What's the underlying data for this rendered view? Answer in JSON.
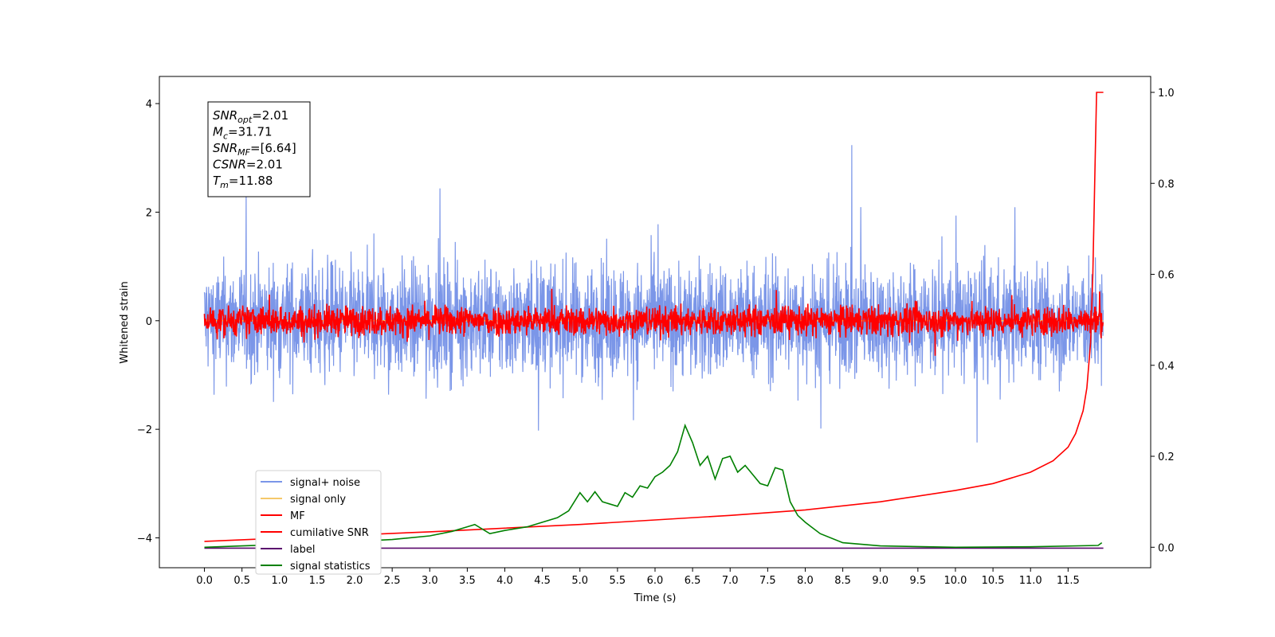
{
  "chart_data": {
    "type": "line",
    "xlabel": "Time (s)",
    "ylabel": "Whitened strain",
    "xlim": [
      -0.6,
      12.6
    ],
    "ylim": [
      -4.55,
      4.5
    ],
    "y2lim": [
      -0.045,
      1.035
    ],
    "x_ticks": [
      "0.0",
      "0.5",
      "1.0",
      "1.5",
      "2.0",
      "2.5",
      "3.0",
      "3.5",
      "4.0",
      "4.5",
      "5.0",
      "5.5",
      "6.0",
      "6.5",
      "7.0",
      "7.5",
      "8.0",
      "8.5",
      "9.0",
      "9.5",
      "10.0",
      "10.5",
      "11.0",
      "11.5"
    ],
    "y_ticks": [
      "4",
      "2",
      "0",
      "−2",
      "−4"
    ],
    "y2_ticks": [
      "1.0",
      "0.8",
      "0.6",
      "0.4",
      "0.2",
      "0.0"
    ],
    "grid": false,
    "legend_position": "lower-left",
    "colors": {
      "signal_noise": "#7b96e8",
      "signal_only": "#f5c86a",
      "mf": "#ff0000",
      "cumulative_snr": "#ff0000",
      "label": "#5a0a6e",
      "signal_statistics": "#008000"
    },
    "series": [
      {
        "name": "signal+ noise",
        "axis": "left",
        "noise_amplitude": 2.1,
        "x_range": [
          0.0,
          11.97
        ]
      },
      {
        "name": "signal only",
        "axis": "left",
        "x": [
          0.0,
          11.97
        ],
        "y": [
          0.0,
          0.0
        ]
      },
      {
        "name": "MF",
        "axis": "left",
        "noise_amplitude": 0.55,
        "x_range": [
          0.0,
          11.97
        ]
      },
      {
        "name": "cumilative SNR",
        "axis": "right",
        "x": [
          0.0,
          1.0,
          2.0,
          3.0,
          4.0,
          5.0,
          6.0,
          7.0,
          8.0,
          9.0,
          10.0,
          10.5,
          11.0,
          11.3,
          11.5,
          11.6,
          11.7,
          11.75,
          11.8,
          11.83,
          11.86,
          11.88,
          11.9,
          11.97
        ],
        "y": [
          0.013,
          0.02,
          0.027,
          0.034,
          0.042,
          0.05,
          0.06,
          0.07,
          0.082,
          0.1,
          0.125,
          0.14,
          0.165,
          0.19,
          0.22,
          0.25,
          0.3,
          0.35,
          0.45,
          0.6,
          0.85,
          1.0,
          1.0,
          1.0
        ]
      },
      {
        "name": "label",
        "axis": "right",
        "x": [
          0.0,
          11.97
        ],
        "y": [
          -0.002,
          -0.002
        ]
      },
      {
        "name": "signal statistics",
        "axis": "right",
        "x": [
          0.0,
          0.5,
          1.0,
          1.5,
          2.0,
          2.5,
          3.0,
          3.3,
          3.5,
          3.6,
          3.8,
          4.0,
          4.3,
          4.5,
          4.7,
          4.85,
          5.0,
          5.1,
          5.2,
          5.3,
          5.5,
          5.6,
          5.7,
          5.8,
          5.9,
          6.0,
          6.1,
          6.2,
          6.3,
          6.4,
          6.5,
          6.6,
          6.7,
          6.8,
          6.9,
          7.0,
          7.1,
          7.2,
          7.3,
          7.4,
          7.5,
          7.6,
          7.7,
          7.8,
          7.9,
          8.0,
          8.2,
          8.5,
          9.0,
          10.0,
          11.0,
          11.9,
          11.95
        ],
        "y": [
          0.0,
          0.003,
          0.006,
          0.01,
          0.013,
          0.017,
          0.025,
          0.035,
          0.045,
          0.05,
          0.03,
          0.037,
          0.045,
          0.055,
          0.065,
          0.08,
          0.12,
          0.1,
          0.122,
          0.1,
          0.09,
          0.12,
          0.11,
          0.135,
          0.13,
          0.155,
          0.165,
          0.18,
          0.21,
          0.268,
          0.23,
          0.18,
          0.2,
          0.15,
          0.195,
          0.2,
          0.165,
          0.18,
          0.16,
          0.14,
          0.135,
          0.175,
          0.17,
          0.1,
          0.07,
          0.055,
          0.03,
          0.01,
          0.003,
          0.0,
          0.001,
          0.004,
          0.01
        ]
      }
    ]
  },
  "info_box": {
    "lines": [
      {
        "sym": "SNR",
        "sub": "opt",
        "val": "=2.01"
      },
      {
        "sym": "M",
        "sub": "c",
        "val": "=31.71"
      },
      {
        "sym": "SNR",
        "sub": "MF",
        "val": "=[6.64]"
      },
      {
        "sym": "CSNR",
        "sub": "",
        "val": "=2.01"
      },
      {
        "sym": "T",
        "sub": "m",
        "val": "=11.88"
      }
    ]
  }
}
